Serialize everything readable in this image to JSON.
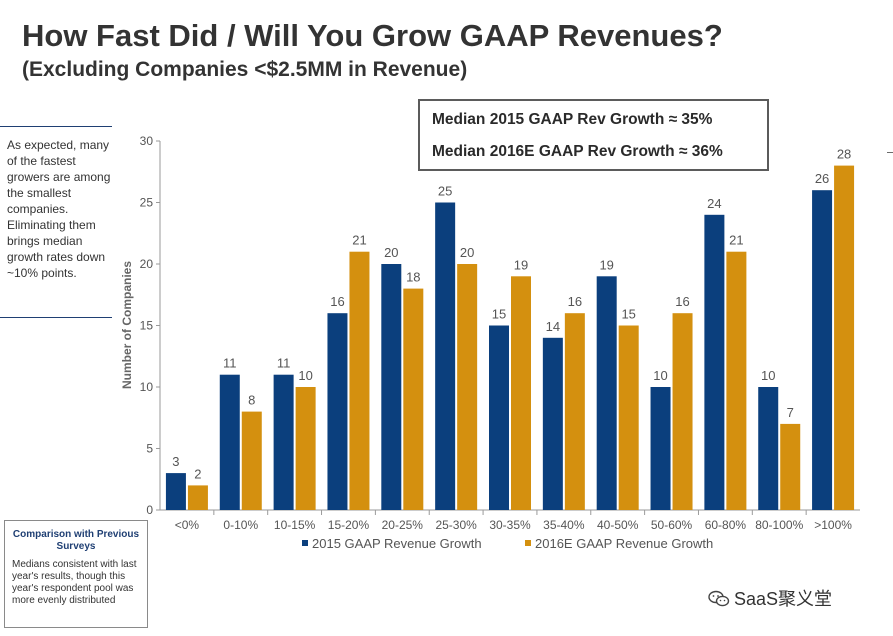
{
  "header": {
    "title": "How Fast Did / Will You Grow GAAP Revenues?",
    "subtitle": "(Excluding Companies <$2.5MM in Revenue)"
  },
  "side_note": {
    "text": "As expected, many of the fastest growers are among the smallest companies. Eliminating them brings median growth rates down ~10% points."
  },
  "median_box": {
    "line1": "Median 2015 GAAP Rev Growth ≈ 35%",
    "line2": "Median 2016E GAAP Rev Growth ≈ 36%"
  },
  "comparison": {
    "title": "Comparison with Previous Surveys",
    "body": "Medians consistent with last year's results, though this year's respondent pool was more evenly distributed"
  },
  "watermark": {
    "text": "SaaS聚义堂",
    "icon": "wechat-icon"
  },
  "colors": {
    "series_2015": "#0b3f7d",
    "series_2016": "#d4900f",
    "title_text": "#333333",
    "note_rule": "#1f3f73"
  },
  "chart_data": {
    "type": "bar",
    "ylabel": "Number of Companies",
    "ylim": [
      0,
      30
    ],
    "yticks": [
      0,
      5,
      10,
      15,
      20,
      25,
      30
    ],
    "categories": [
      "<0%",
      "0-10%",
      "10-15%",
      "15-20%",
      "20-25%",
      "25-30%",
      "30-35%",
      "35-40%",
      "40-50%",
      "50-60%",
      "60-80%",
      "80-100%",
      ">100%"
    ],
    "series": [
      {
        "name": "2015 GAAP Revenue Growth",
        "color": "#0b3f7d",
        "values": [
          3,
          11,
          11,
          16,
          20,
          25,
          15,
          14,
          19,
          10,
          24,
          10,
          26
        ]
      },
      {
        "name": "2016E GAAP Revenue Growth",
        "color": "#d4900f",
        "values": [
          2,
          8,
          10,
          21,
          18,
          20,
          19,
          16,
          15,
          16,
          21,
          7,
          28
        ]
      }
    ],
    "legend": "bottom",
    "grid": false
  }
}
